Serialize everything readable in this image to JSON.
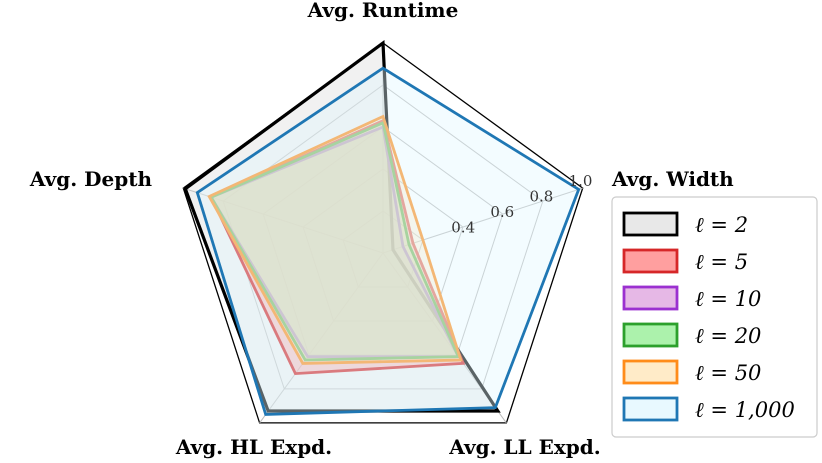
{
  "chart_data": {
    "type": "radar",
    "title": "",
    "axes": [
      "Avg. Runtime",
      "Avg. Width",
      "Avg. LL Expd.",
      "Avg. HL Expd.",
      "Avg. Depth"
    ],
    "rlim": [
      0,
      1.0
    ],
    "ticks": [
      0.2,
      0.4,
      0.6,
      0.8,
      1.0
    ],
    "tick_labels": [
      "0.4",
      "0.6",
      "0.8",
      "1.0"
    ],
    "grid": true,
    "legend_position": "right",
    "series": [
      {
        "name": "ℓ = 2",
        "color": "#000000",
        "fill": "#d6d6d6",
        "values": [
          1.0,
          0.05,
          0.93,
          0.93,
          0.99
        ]
      },
      {
        "name": "ℓ = 5",
        "color": "#d62728",
        "fill": "#ff7f7f",
        "values": [
          0.63,
          0.15,
          0.65,
          0.71,
          0.86
        ]
      },
      {
        "name": "ℓ = 10",
        "color": "#9b30d0",
        "fill": "#dda0dd",
        "values": [
          0.6,
          0.1,
          0.61,
          0.61,
          0.86
        ]
      },
      {
        "name": "ℓ = 20",
        "color": "#2ca02c",
        "fill": "#90ee90",
        "values": [
          0.62,
          0.13,
          0.61,
          0.63,
          0.86
        ]
      },
      {
        "name": "ℓ = 50",
        "color": "#ff8c1a",
        "fill": "#ffe4b5",
        "values": [
          0.65,
          0.2,
          0.63,
          0.65,
          0.87
        ]
      },
      {
        "name": "ℓ = 1,000",
        "color": "#1f77b4",
        "fill": "#e0f7ff",
        "values": [
          0.88,
          0.98,
          0.91,
          0.95,
          0.93
        ]
      }
    ]
  },
  "legend": {
    "items": [
      "ℓ = 2",
      "ℓ = 5",
      "ℓ = 10",
      "ℓ = 20",
      "ℓ = 50",
      "ℓ = 1,000"
    ]
  }
}
